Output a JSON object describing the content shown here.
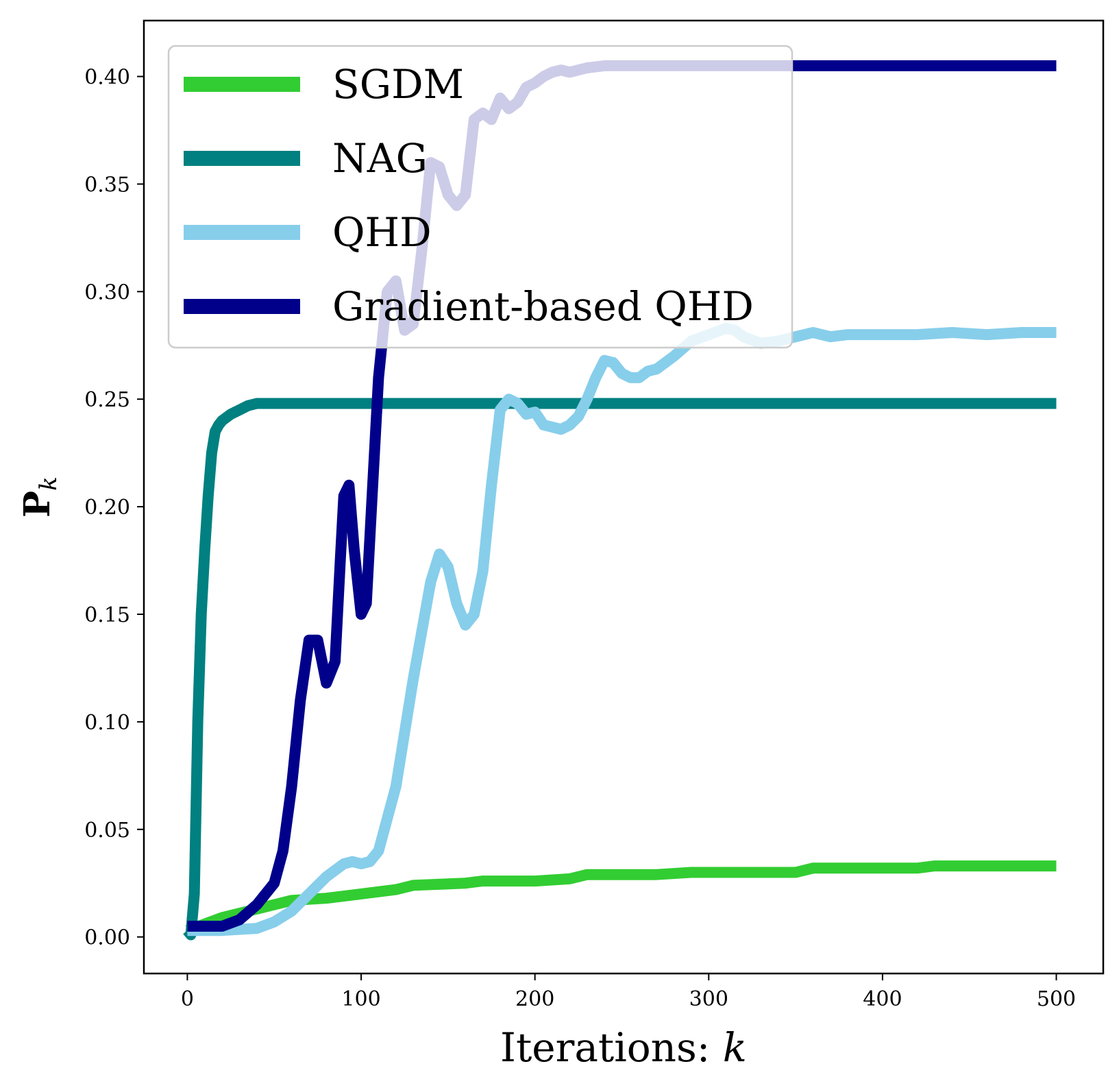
{
  "chart_data": {
    "type": "line",
    "xlabel_text": "Iterations: ",
    "xlabel_var": "k",
    "ylabel_main": "P",
    "ylabel_sub": "k",
    "xlim": [
      -25,
      527
    ],
    "ylim": [
      -0.017,
      0.426
    ],
    "xticks": [
      0,
      100,
      200,
      300,
      400,
      500
    ],
    "yticks": [
      0.0,
      0.05,
      0.1,
      0.15,
      0.2,
      0.25,
      0.3,
      0.35,
      0.4
    ],
    "grid": false,
    "legend_position": "top-left",
    "series": [
      {
        "name": "SGDM",
        "color": "#32cd32",
        "x": [
          0,
          10,
          20,
          30,
          40,
          50,
          60,
          80,
          100,
          120,
          130,
          160,
          170,
          200,
          220,
          230,
          270,
          290,
          350,
          360,
          420,
          430,
          500
        ],
        "y": [
          0.003,
          0.006,
          0.009,
          0.011,
          0.013,
          0.015,
          0.017,
          0.018,
          0.02,
          0.022,
          0.024,
          0.025,
          0.026,
          0.026,
          0.027,
          0.029,
          0.029,
          0.03,
          0.03,
          0.032,
          0.032,
          0.033,
          0.033
        ]
      },
      {
        "name": "NAG",
        "color": "#008080",
        "x": [
          0,
          2,
          4,
          6,
          8,
          10,
          12,
          14,
          16,
          18,
          20,
          25,
          30,
          35,
          40,
          50,
          100,
          200,
          300,
          400,
          500
        ],
        "y": [
          0.003,
          0.001,
          0.02,
          0.1,
          0.15,
          0.18,
          0.205,
          0.225,
          0.235,
          0.238,
          0.24,
          0.243,
          0.245,
          0.247,
          0.248,
          0.248,
          0.248,
          0.248,
          0.248,
          0.248,
          0.248
        ]
      },
      {
        "name": "QHD",
        "color": "#87ceeb",
        "x": [
          0,
          20,
          40,
          50,
          60,
          70,
          80,
          90,
          95,
          100,
          105,
          110,
          120,
          130,
          140,
          145,
          150,
          155,
          160,
          165,
          170,
          175,
          180,
          185,
          190,
          195,
          200,
          205,
          210,
          215,
          220,
          225,
          230,
          235,
          240,
          245,
          250,
          255,
          260,
          265,
          270,
          280,
          290,
          300,
          310,
          315,
          320,
          330,
          340,
          350,
          360,
          370,
          380,
          400,
          420,
          440,
          460,
          480,
          500
        ],
        "y": [
          0.003,
          0.003,
          0.004,
          0.007,
          0.012,
          0.02,
          0.028,
          0.034,
          0.035,
          0.034,
          0.035,
          0.04,
          0.07,
          0.12,
          0.165,
          0.178,
          0.172,
          0.155,
          0.145,
          0.15,
          0.17,
          0.21,
          0.245,
          0.25,
          0.248,
          0.243,
          0.244,
          0.238,
          0.237,
          0.236,
          0.238,
          0.242,
          0.25,
          0.26,
          0.268,
          0.267,
          0.262,
          0.26,
          0.26,
          0.263,
          0.264,
          0.27,
          0.277,
          0.28,
          0.283,
          0.282,
          0.279,
          0.276,
          0.277,
          0.279,
          0.281,
          0.279,
          0.28,
          0.28,
          0.28,
          0.281,
          0.28,
          0.281,
          0.281
        ]
      },
      {
        "name": "Gradient-based QHD",
        "color": "#00008b",
        "x": [
          0,
          20,
          30,
          40,
          50,
          55,
          60,
          65,
          70,
          75,
          80,
          85,
          88,
          90,
          93,
          96,
          100,
          103,
          106,
          110,
          115,
          120,
          125,
          130,
          135,
          140,
          145,
          150,
          155,
          160,
          165,
          170,
          175,
          180,
          185,
          190,
          195,
          200,
          205,
          210,
          215,
          220,
          230,
          240,
          260,
          280,
          300,
          320,
          350,
          400,
          500
        ],
        "y": [
          0.005,
          0.005,
          0.008,
          0.015,
          0.025,
          0.04,
          0.07,
          0.11,
          0.138,
          0.138,
          0.118,
          0.128,
          0.175,
          0.205,
          0.21,
          0.18,
          0.15,
          0.155,
          0.2,
          0.26,
          0.3,
          0.305,
          0.282,
          0.285,
          0.32,
          0.36,
          0.358,
          0.345,
          0.34,
          0.345,
          0.38,
          0.383,
          0.38,
          0.39,
          0.385,
          0.388,
          0.395,
          0.397,
          0.4,
          0.402,
          0.403,
          0.402,
          0.404,
          0.405,
          0.405,
          0.405,
          0.405,
          0.405,
          0.405,
          0.405,
          0.405
        ]
      }
    ]
  }
}
